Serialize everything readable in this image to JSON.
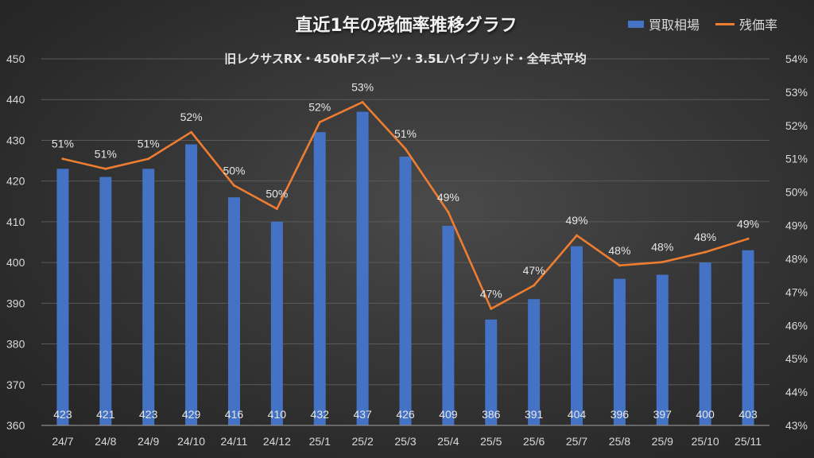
{
  "colors": {
    "bar": "#4472c4",
    "line": "#ed7d31",
    "text": "#d9d9d9",
    "grid": "#5a5a5a"
  },
  "chart_data": {
    "type": "bar",
    "title": "直近1年の残価率推移グラフ",
    "subtitle": "旧レクサスRX・450hFスポーツ・3.5Lハイブリッド・全年式平均",
    "legend_position": "top-right",
    "categories": [
      "24/7",
      "24/8",
      "24/9",
      "24/10",
      "24/11",
      "24/12",
      "25/1",
      "25/2",
      "25/3",
      "25/4",
      "25/5",
      "25/6",
      "25/7",
      "25/8",
      "25/9",
      "25/10",
      "25/11"
    ],
    "series": [
      {
        "name": "買取相場",
        "type": "bar",
        "axis": "left",
        "values": [
          423,
          421,
          423,
          429,
          416,
          410,
          432,
          437,
          426,
          409,
          386,
          391,
          404,
          396,
          397,
          400,
          403
        ],
        "labels": [
          "423",
          "421",
          "423",
          "429",
          "416",
          "410",
          "432",
          "437",
          "426",
          "409",
          "386",
          "391",
          "404",
          "396",
          "397",
          "400",
          "403"
        ]
      },
      {
        "name": "残価率",
        "type": "line",
        "axis": "right",
        "values": [
          51.0,
          50.7,
          51.0,
          51.8,
          50.2,
          49.5,
          52.1,
          52.7,
          51.3,
          49.4,
          46.5,
          47.2,
          48.7,
          47.8,
          47.9,
          48.2,
          48.6
        ],
        "labels": [
          "51%",
          "51%",
          "51%",
          "52%",
          "50%",
          "50%",
          "52%",
          "53%",
          "51%",
          "49%",
          "47%",
          "47%",
          "49%",
          "48%",
          "48%",
          "48%",
          "49%"
        ]
      }
    ],
    "y_left": {
      "min": 360,
      "max": 450,
      "step": 10,
      "ticks": [
        "360",
        "370",
        "380",
        "390",
        "400",
        "410",
        "420",
        "430",
        "440",
        "450"
      ]
    },
    "y_right": {
      "min": 43,
      "max": 54,
      "step": 1,
      "ticks": [
        "43%",
        "44%",
        "45%",
        "46%",
        "47%",
        "48%",
        "49%",
        "50%",
        "51%",
        "52%",
        "53%",
        "54%"
      ]
    },
    "grid": true
  }
}
